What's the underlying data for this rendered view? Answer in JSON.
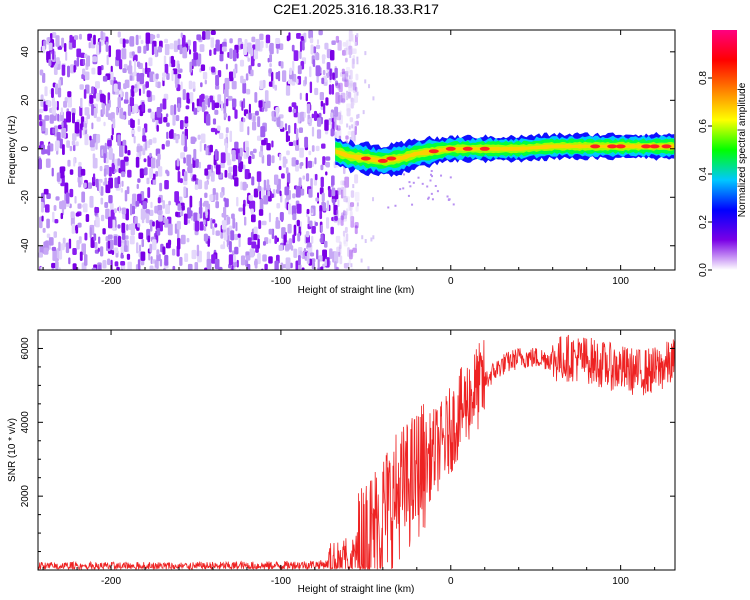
{
  "page_title": "C2E1.2025.316.18.33.R17",
  "chart_data": [
    {
      "id": "spectrogram",
      "type": "heatmap",
      "xlabel": "Height of straight line (km)",
      "ylabel": "Frequency (Hz)",
      "xlim": [
        -243,
        132
      ],
      "ylim": [
        -50,
        49
      ],
      "xticks": [
        -200,
        -100,
        0,
        100
      ],
      "yticks": [
        -40,
        -20,
        0,
        20,
        40
      ],
      "noise_region_x": [
        -243,
        -62
      ],
      "signal_trace": {
        "x": [
          -68,
          -60,
          -50,
          -40,
          -30,
          -20,
          -10,
          0,
          20,
          40,
          60,
          80,
          100,
          120,
          132
        ],
        "y": [
          -1,
          -3,
          -4,
          -5,
          -4,
          -2,
          -1,
          0,
          0,
          0,
          1,
          1,
          1,
          1,
          1
        ]
      },
      "colorbar": {
        "label": "Normalized spectral amplitude",
        "range": [
          0,
          1
        ],
        "ticks": [
          0.0,
          0.2,
          0.4,
          0.6,
          0.8
        ],
        "colors": [
          "#ffffff",
          "#7a00e6",
          "#0000ff",
          "#00c8ff",
          "#00ff00",
          "#ffff00",
          "#ff8000",
          "#ff0000",
          "#ff0080"
        ]
      }
    },
    {
      "id": "snr",
      "type": "line",
      "xlabel": "Height of straight line (km)",
      "ylabel": "SNR (10 * v/v)",
      "xlim": [
        -243,
        132
      ],
      "ylim": [
        0,
        6500
      ],
      "xticks": [
        -200,
        -100,
        0,
        100
      ],
      "yticks": [
        2000,
        4000,
        6000
      ],
      "line_color": "#ee2222",
      "series": [
        {
          "name": "SNR",
          "x": [
            -243,
            -200,
            -150,
            -100,
            -75,
            -65,
            -55,
            -50,
            -45,
            -40,
            -35,
            -30,
            -25,
            -20,
            -15,
            -10,
            -5,
            0,
            5,
            10,
            15,
            20,
            25,
            30,
            35,
            40,
            50,
            60,
            70,
            80,
            90,
            100,
            110,
            120,
            125,
            132
          ],
          "y": [
            100,
            100,
            100,
            120,
            150,
            200,
            400,
            700,
            1100,
            1500,
            1800,
            2100,
            2300,
            2600,
            2900,
            3200,
            3400,
            3800,
            4200,
            4600,
            4900,
            5100,
            5350,
            5550,
            5650,
            5750,
            5750,
            5700,
            5750,
            5700,
            5550,
            5450,
            5350,
            5400,
            5500,
            5650
          ]
        }
      ],
      "noise_amplitude": [
        {
          "x0": -243,
          "x1": -72,
          "amp": 120
        },
        {
          "x0": -72,
          "x1": -55,
          "amp": 600
        },
        {
          "x0": -55,
          "x1": -15,
          "amp": 1800
        },
        {
          "x0": -15,
          "x1": 20,
          "amp": 1200
        },
        {
          "x0": 20,
          "x1": 60,
          "amp": 300
        },
        {
          "x0": 60,
          "x1": 132,
          "amp": 650
        }
      ]
    }
  ]
}
